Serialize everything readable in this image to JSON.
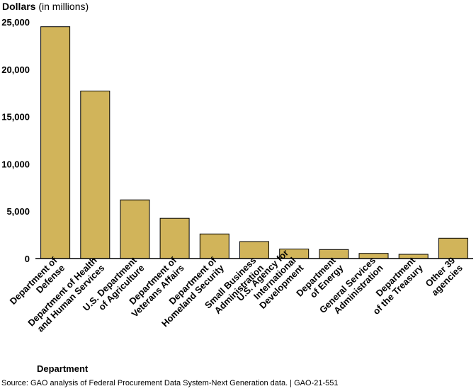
{
  "chart_data": {
    "type": "bar",
    "ylabel": "Dollars",
    "ylabel_unit": "(in millions)",
    "xlabel": "Department",
    "ylim": [
      0,
      25000
    ],
    "yticks": [
      "0",
      "5,000",
      "10,000",
      "15,000",
      "20,000",
      "25,000"
    ],
    "ytick_values": [
      0,
      5000,
      10000,
      15000,
      20000,
      25000
    ],
    "categories": [
      [
        "Department of",
        "Defense"
      ],
      [
        "Department of Health",
        "and Human Services"
      ],
      [
        "U.S. Department",
        "of Agriculture"
      ],
      [
        "Department of",
        "Veterans Affairs"
      ],
      [
        "Department of",
        "Homeland Security"
      ],
      [
        "Small Business",
        "Administration"
      ],
      [
        "U.S. Agency for",
        "International",
        "Development"
      ],
      [
        "Department",
        "of Energy"
      ],
      [
        "General Services",
        "Administration"
      ],
      [
        "Department",
        "of the Treasury"
      ],
      [
        "Other 39",
        "agencies"
      ]
    ],
    "values": [
      24500,
      17700,
      6200,
      4250,
      2600,
      1800,
      1000,
      950,
      550,
      450,
      2150
    ],
    "bar_color": "#d1b45a",
    "bar_stroke": "#000000",
    "grid": false,
    "legend": "none"
  },
  "source": "Source: GAO analysis of Federal Procurement Data System-Next Generation data.  |  GAO-21-551"
}
